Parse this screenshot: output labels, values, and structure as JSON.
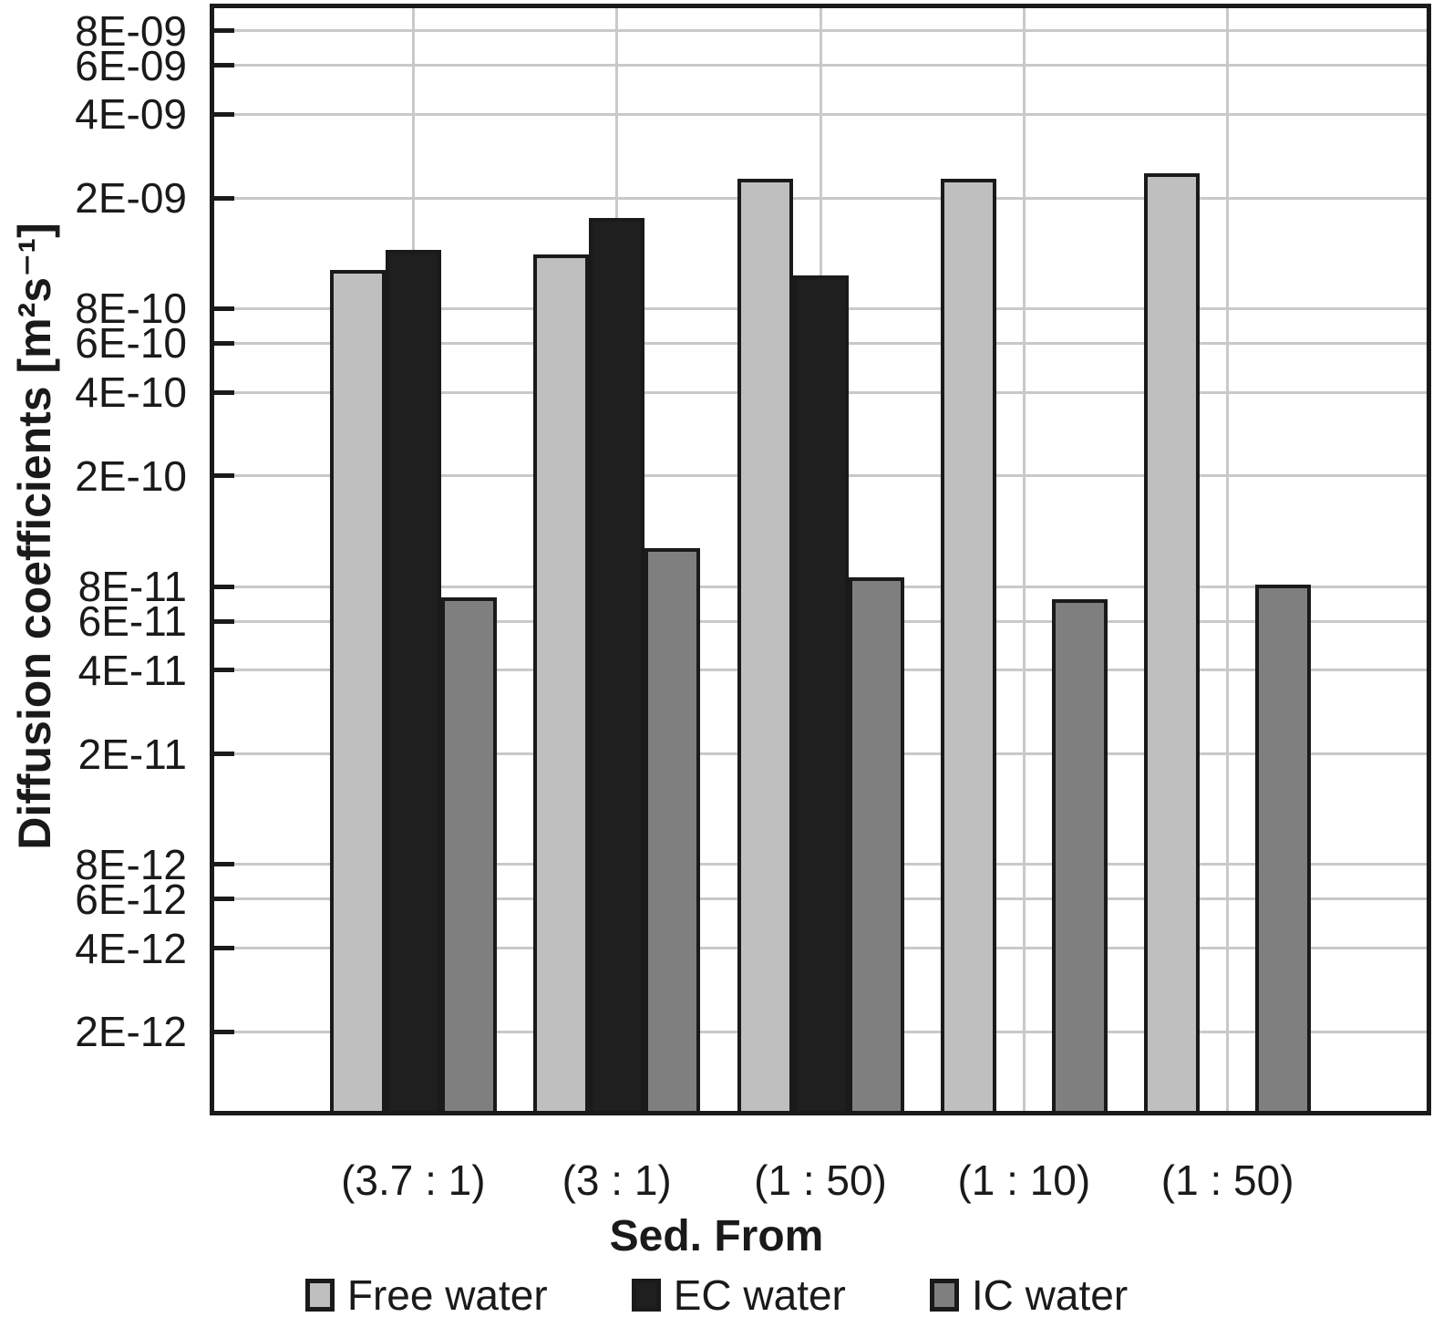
{
  "chart_data": {
    "type": "bar",
    "title": "",
    "xlabel": "Sed. From",
    "ylabel": "Diffusion coefficients [m²s⁻¹]",
    "y_scale": "log",
    "ylim": [
      1e-12,
      1e-08
    ],
    "grid": true,
    "legend_position": "bottom",
    "y_ticks": [
      {
        "label": "8E-09",
        "value": 8e-09
      },
      {
        "label": "6E-09",
        "value": 6e-09
      },
      {
        "label": "4E-09",
        "value": 4e-09
      },
      {
        "label": "2E-09",
        "value": 2e-09
      },
      {
        "label": "8E-10",
        "value": 8e-10
      },
      {
        "label": "6E-10",
        "value": 6e-10
      },
      {
        "label": "4E-10",
        "value": 4e-10
      },
      {
        "label": "2E-10",
        "value": 2e-10
      },
      {
        "label": "8E-11",
        "value": 8e-11
      },
      {
        "label": "6E-11",
        "value": 6e-11
      },
      {
        "label": "4E-11",
        "value": 4e-11
      },
      {
        "label": "2E-11",
        "value": 2e-11
      },
      {
        "label": "8E-12",
        "value": 8e-12
      },
      {
        "label": "6E-12",
        "value": 6e-12
      },
      {
        "label": "4E-12",
        "value": 4e-12
      },
      {
        "label": "2E-12",
        "value": 2e-12
      }
    ],
    "categories": [
      "(3.7 : 1)",
      "(3 : 1)",
      "(1 : 50)",
      "(1 : 10)",
      "(1 : 50)"
    ],
    "series": [
      {
        "name": "Free water",
        "color": "#bfbfbf",
        "values": [
          1.1e-09,
          1.25e-09,
          2.35e-09,
          2.35e-09,
          2.45e-09
        ]
      },
      {
        "name": "EC water",
        "color": "#1f1f1f",
        "values": [
          1.3e-09,
          1.7e-09,
          1.05e-09,
          null,
          null
        ]
      },
      {
        "name": "IC water",
        "color": "#7f7f7f",
        "values": [
          7.3e-11,
          1.1e-10,
          8.6e-11,
          7.2e-11,
          8.1e-11
        ]
      }
    ]
  },
  "colors": {
    "background": "#ffffff",
    "axis_border": "#1a1a1a",
    "bar_border": "#1a1a1a",
    "gridline": "#c9c9c9",
    "text": "#1a1a1a"
  }
}
